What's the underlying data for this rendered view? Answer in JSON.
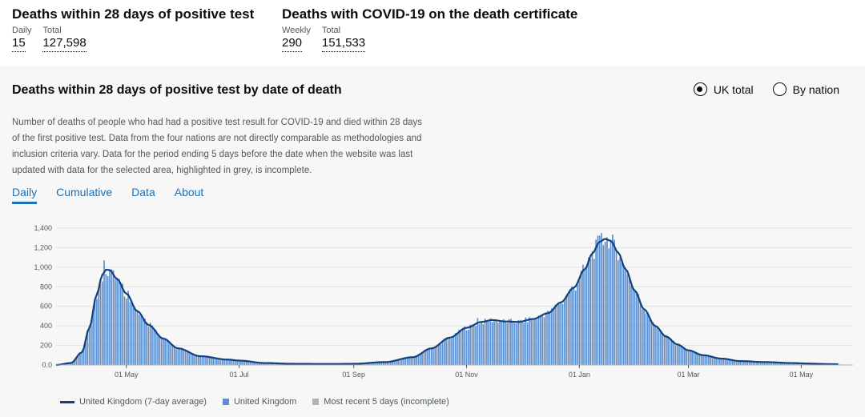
{
  "headline": {
    "left": {
      "title": "Deaths within 28 days of positive test",
      "m1_label": "Daily",
      "m1_value": "15",
      "m2_label": "Total",
      "m2_value": "127,598"
    },
    "right": {
      "title": "Deaths with COVID-19 on the death certificate",
      "m1_label": "Weekly",
      "m1_value": "290",
      "m2_label": "Total",
      "m2_value": "151,533"
    }
  },
  "card": {
    "title": "Deaths within 28 days of positive test by date of death",
    "radio_uk": "UK total",
    "radio_nation": "By nation",
    "description": "Number of deaths of people who had had a positive test result for COVID-19 and died within 28 days of the first positive test. Data from the four nations are not directly comparable as methodologies and inclusion criteria vary. Data for the period ending 5 days before the date when the website was last updated with data for the selected area, highlighted in grey, is incomplete.",
    "tabs": [
      "Daily",
      "Cumulative",
      "Data",
      "About"
    ]
  },
  "colors": {
    "bar": "#5b8fd0",
    "line": "#12407f",
    "incomplete": "#b1b4b6",
    "grid": "#e1e1e1"
  },
  "chart_data": {
    "type": "bar",
    "ylim": [
      0,
      1400
    ],
    "yticks": [
      0,
      200,
      400,
      600,
      800,
      1000,
      1200,
      1400
    ],
    "ytick_labels": [
      "0.0",
      "200",
      "400",
      "600",
      "800",
      "1,000",
      "1,200",
      "1,400"
    ],
    "x_start_day": -38,
    "x_end_day": 393,
    "xticks": [
      {
        "day": 0,
        "label": "01 May"
      },
      {
        "day": 61,
        "label": "01 Jul"
      },
      {
        "day": 123,
        "label": "01 Sep"
      },
      {
        "day": 184,
        "label": "01 Nov"
      },
      {
        "day": 245,
        "label": "01 Jan"
      },
      {
        "day": 304,
        "label": "01 Mar"
      },
      {
        "day": 365,
        "label": "01 May"
      }
    ],
    "series_bar_name": "United Kingdom",
    "series_line_name": "United Kingdom (7-day average)",
    "incomplete_name": "Most recent 5 days (incomplete)",
    "anchors_7day_avg": [
      [
        -38,
        0
      ],
      [
        -30,
        20
      ],
      [
        -24,
        130
      ],
      [
        -20,
        380
      ],
      [
        -16,
        720
      ],
      [
        -13,
        920
      ],
      [
        -11,
        975
      ],
      [
        -9,
        970
      ],
      [
        -5,
        880
      ],
      [
        0,
        730
      ],
      [
        6,
        550
      ],
      [
        12,
        410
      ],
      [
        20,
        270
      ],
      [
        28,
        170
      ],
      [
        40,
        90
      ],
      [
        55,
        55
      ],
      [
        61,
        45
      ],
      [
        75,
        20
      ],
      [
        90,
        12
      ],
      [
        110,
        10
      ],
      [
        123,
        12
      ],
      [
        140,
        30
      ],
      [
        155,
        80
      ],
      [
        165,
        170
      ],
      [
        175,
        280
      ],
      [
        184,
        380
      ],
      [
        192,
        440
      ],
      [
        198,
        460
      ],
      [
        205,
        445
      ],
      [
        212,
        440
      ],
      [
        220,
        470
      ],
      [
        228,
        530
      ],
      [
        235,
        640
      ],
      [
        242,
        790
      ],
      [
        248,
        980
      ],
      [
        252,
        1140
      ],
      [
        256,
        1260
      ],
      [
        259,
        1290
      ],
      [
        262,
        1270
      ],
      [
        266,
        1150
      ],
      [
        270,
        980
      ],
      [
        275,
        760
      ],
      [
        280,
        570
      ],
      [
        286,
        400
      ],
      [
        292,
        290
      ],
      [
        298,
        210
      ],
      [
        304,
        150
      ],
      [
        312,
        100
      ],
      [
        322,
        65
      ],
      [
        332,
        40
      ],
      [
        345,
        30
      ],
      [
        360,
        20
      ],
      [
        370,
        14
      ],
      [
        376,
        10
      ],
      [
        383,
        8
      ],
      [
        393,
        0
      ]
    ],
    "daily_spikes": [
      {
        "day": -12,
        "value": 1070
      },
      {
        "day": 190,
        "value": 480
      },
      {
        "day": 257,
        "value": 1350
      },
      {
        "day": 262,
        "value": 1280
      },
      {
        "day": 267,
        "value": 1100
      }
    ],
    "incomplete_days": 5,
    "last_data_day": 390
  }
}
